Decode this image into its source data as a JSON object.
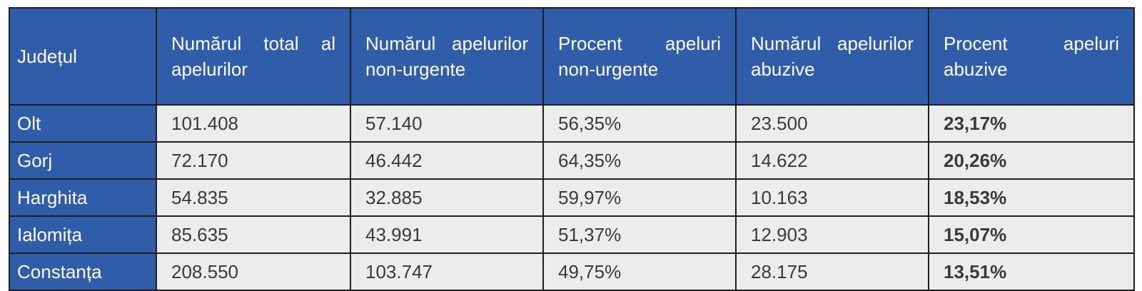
{
  "table": {
    "header": [
      "Județul",
      "Numărul total al apelurilor",
      "Numărul apelurilor non-urgente",
      "Procent apeluri non-urgente",
      "Numărul apelurilor abuzive",
      "Procent apeluri abuzive"
    ],
    "rows": [
      [
        "Olt",
        "101.408",
        "57.140",
        "56,35%",
        "23.500",
        "23,17%"
      ],
      [
        "Gorj",
        "72.170",
        "46.442",
        "64,35%",
        "14.622",
        "20,26%"
      ],
      [
        "Harghita",
        "54.835",
        "32.885",
        "59,97%",
        "10.163",
        "18,53%"
      ],
      [
        "Ialomița",
        "85.635",
        "43.991",
        "51,37%",
        "12.903",
        "15,07%"
      ],
      [
        "Constanța",
        "208.550",
        "103.747",
        "49,75%",
        "28.175",
        "13,51%"
      ]
    ]
  }
}
